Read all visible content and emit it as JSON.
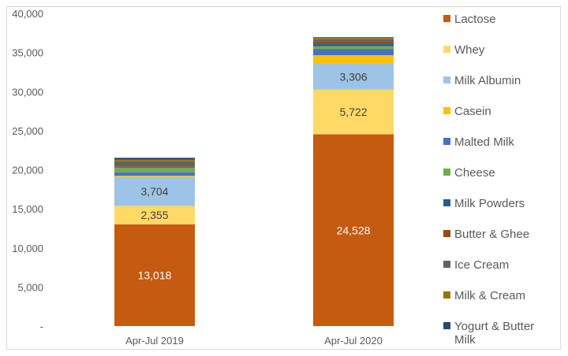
{
  "chart_data": {
    "type": "bar",
    "stacked": true,
    "title": "",
    "xlabel": "",
    "ylabel": "",
    "ylim": [
      0,
      40000
    ],
    "yticks": [
      0,
      5000,
      10000,
      15000,
      20000,
      25000,
      30000,
      35000,
      40000
    ],
    "ytick_labels": [
      "-",
      "5,000",
      "10,000",
      "15,000",
      "20,000",
      "25,000",
      "30,000",
      "35,000",
      "40,000"
    ],
    "grid": false,
    "legend_position": "right",
    "categories": [
      "Apr-Jul 2019",
      "Apr-Jul 2020"
    ],
    "series": [
      {
        "name": "Lactose",
        "color": "#C55A11",
        "values": [
          13018,
          24528
        ],
        "labels": [
          "13,018",
          "24,528"
        ],
        "label_color": "#ffffff"
      },
      {
        "name": "Whey",
        "color": "#FFD966",
        "values": [
          2355,
          5722
        ],
        "labels": [
          "2,355",
          "5,722"
        ],
        "label_color": "#404040"
      },
      {
        "name": "Milk Albumin",
        "color": "#9DC3E6",
        "values": [
          3704,
          3306
        ],
        "labels": [
          "3,704",
          "3,306"
        ],
        "label_color": "#404040"
      },
      {
        "name": "Casein",
        "color": "#FFC000",
        "values": [
          150,
          1100
        ],
        "labels": null
      },
      {
        "name": "Malted Milk",
        "color": "#4472C4",
        "values": [
          450,
          800
        ],
        "labels": null
      },
      {
        "name": "Cheese",
        "color": "#70AD47",
        "values": [
          550,
          350
        ],
        "labels": null
      },
      {
        "name": "Milk Powders",
        "color": "#255E91",
        "values": [
          100,
          350
        ],
        "labels": null
      },
      {
        "name": "Butter & Ghee",
        "color": "#9E480E",
        "values": [
          100,
          300
        ],
        "labels": null
      },
      {
        "name": "Ice Cream",
        "color": "#636363",
        "values": [
          650,
          250
        ],
        "labels": null
      },
      {
        "name": "Milk & Cream",
        "color": "#997300",
        "values": [
          200,
          150
        ],
        "labels": null
      },
      {
        "name": "Yogurt & Butter Milk",
        "color": "#264478",
        "values": [
          250,
          100
        ],
        "labels": null
      }
    ]
  }
}
